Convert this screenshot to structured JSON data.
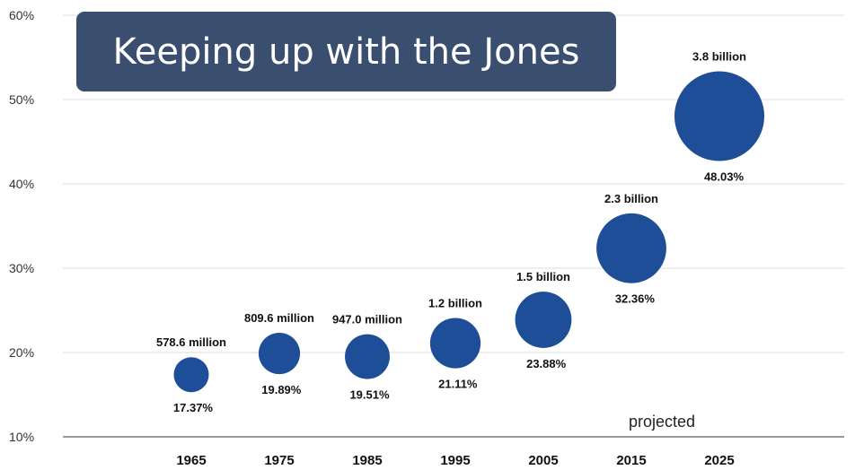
{
  "chart_data": {
    "type": "scatter",
    "title": "Keeping up with the Jones",
    "x": [
      "1965",
      "1975",
      "1985",
      "1995",
      "2005",
      "2015",
      "2025"
    ],
    "y": [
      17.37,
      19.89,
      19.51,
      21.11,
      23.88,
      32.36,
      48.03
    ],
    "y_labels": [
      "17.37%",
      "19.89%",
      "19.51%",
      "21.11%",
      "23.88%",
      "32.36%",
      "48.03%"
    ],
    "size_values": [
      0.5786,
      0.8096,
      0.947,
      1.2,
      1.5,
      2.3,
      3.8
    ],
    "size_labels": [
      "578.6 million",
      "809.6 million",
      "947.0 million",
      "1.2 billion",
      "1.5 billion",
      "2.3 billion",
      "3.8 billion"
    ],
    "yticks": [
      "10%",
      "20%",
      "30%",
      "40%",
      "50%",
      "60%"
    ],
    "ylim": [
      10,
      60
    ],
    "grid": true,
    "annotation": "projected",
    "bubble_color": "#1f4e99"
  }
}
